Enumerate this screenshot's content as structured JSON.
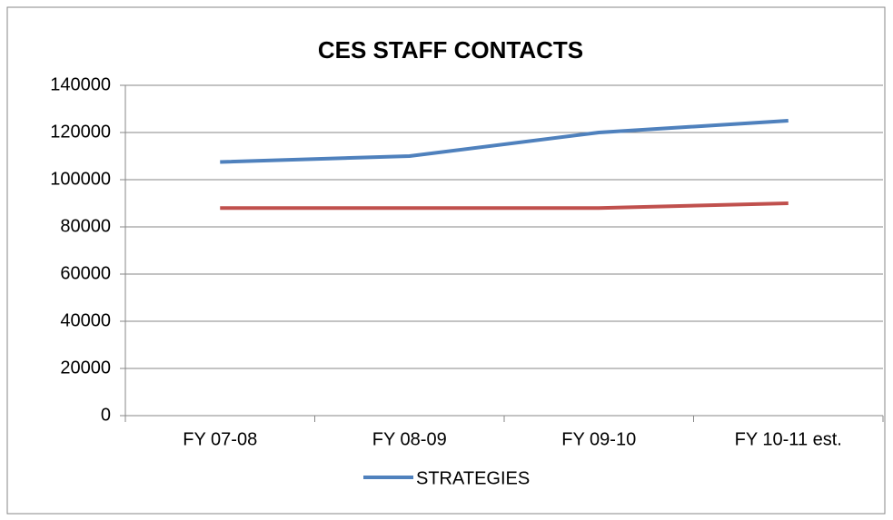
{
  "chart_data": {
    "type": "line",
    "title": "CES STAFF CONTACTS",
    "categories": [
      "FY 07-08",
      "FY 08-09",
      "FY 09-10",
      "FY 10-11 est."
    ],
    "series": [
      {
        "name": "STRATEGIES",
        "color": "#4f81bd",
        "values": [
          107500,
          110000,
          120000,
          125000
        ]
      },
      {
        "color": "#c0504d",
        "values": [
          88000,
          88000,
          88000,
          90000
        ]
      }
    ],
    "ylim": [
      0,
      140000
    ],
    "yticks": [
      0,
      20000,
      40000,
      60000,
      80000,
      100000,
      120000,
      140000
    ],
    "grid": true,
    "legend": "bottom"
  }
}
